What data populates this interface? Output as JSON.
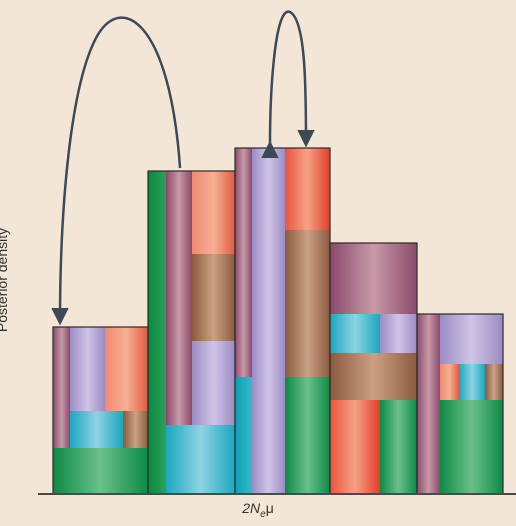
{
  "axis": {
    "y_label": "Posterior density",
    "x_label_main": "2N",
    "x_label_sub": "e",
    "x_label_tail": "μ"
  },
  "colors": {
    "background": "#f3e6d6",
    "axis": "#4a4a4a",
    "arrow": "#3c4a57",
    "outline": "#2a2a2a"
  },
  "columns": [
    {
      "name": "col-1",
      "level": 0.42
    },
    {
      "name": "col-2",
      "level": 0.91
    },
    {
      "name": "col-3",
      "level": 0.97
    },
    {
      "name": "col-4",
      "level": 0.71
    },
    {
      "name": "col-5",
      "level": 0.51
    }
  ],
  "arrows": [
    {
      "name": "arrow-col2-to-col1",
      "from_column": 2,
      "to_column": 1
    },
    {
      "name": "arrow-col3-up-down",
      "from_column": 3,
      "to_column": 3
    }
  ]
}
